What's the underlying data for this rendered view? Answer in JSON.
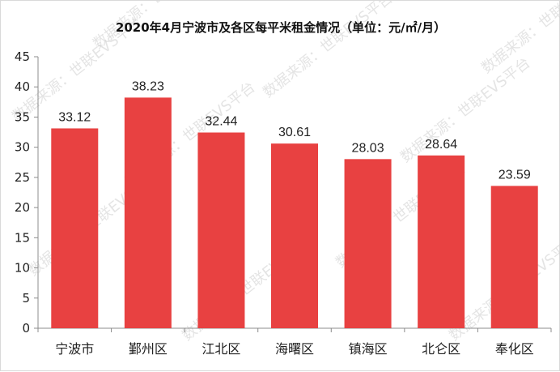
{
  "chart_data": {
    "type": "bar",
    "title": "2020年4月宁波市及各区每平米租金情况（单位：元/㎡/月）",
    "categories": [
      "宁波市",
      "鄞州区",
      "江北区",
      "海曙区",
      "镇海区",
      "北仑区",
      "奉化区"
    ],
    "values": [
      33.12,
      38.23,
      32.44,
      30.61,
      28.03,
      28.64,
      23.59
    ],
    "data_labels": [
      "33.12",
      "38.23",
      "32.44",
      "30.61",
      "28.03",
      "28.64",
      "23.59"
    ],
    "ylim": [
      0,
      45
    ],
    "yticks": [
      "0",
      "5",
      "10",
      "15",
      "20",
      "25",
      "30",
      "35",
      "40",
      "45"
    ],
    "grid": false,
    "bar_color": "#E84141",
    "watermark": "数据来源：世联EVS平台"
  }
}
